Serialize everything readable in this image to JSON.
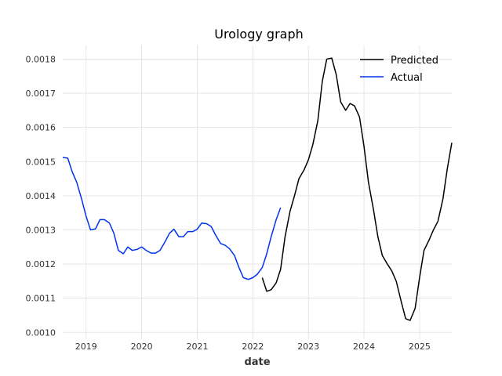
{
  "chart_data": {
    "type": "line",
    "title": "Urology graph",
    "xlabel": "date",
    "ylabel": "",
    "xlim": [
      2018.58,
      2025.58
    ],
    "ylim": [
      0.00098,
      0.00184
    ],
    "x_ticks": [
      2019,
      2020,
      2021,
      2022,
      2023,
      2024,
      2025
    ],
    "x_tick_labels": [
      "2019",
      "2020",
      "2021",
      "2022",
      "2023",
      "2024",
      "2025"
    ],
    "y_ticks": [
      0.001,
      0.0011,
      0.0012,
      0.0013,
      0.0014,
      0.0015,
      0.0016,
      0.0017,
      0.0018
    ],
    "y_tick_labels": [
      "0.0010",
      "0.0011",
      "0.0012",
      "0.0013",
      "0.0014",
      "0.0015",
      "0.0016",
      "0.0017",
      "0.0018"
    ],
    "grid": true,
    "legend_position": "top-right",
    "series": [
      {
        "name": "Predicted",
        "color": "#000000",
        "x": [
          2022.17,
          2022.25,
          2022.33,
          2022.42,
          2022.5,
          2022.58,
          2022.67,
          2022.75,
          2022.83,
          2022.92,
          2023.0,
          2023.08,
          2023.17,
          2023.25,
          2023.33,
          2023.42,
          2023.5,
          2023.58,
          2023.67,
          2023.75,
          2023.83,
          2023.92,
          2024.0,
          2024.08,
          2024.17,
          2024.25,
          2024.33,
          2024.42,
          2024.5,
          2024.58,
          2024.67,
          2024.75,
          2024.83,
          2024.92,
          2025.0,
          2025.08,
          2025.17,
          2025.25,
          2025.33,
          2025.42,
          2025.5,
          2025.58
        ],
        "values": [
          0.00116,
          0.00112,
          0.001125,
          0.001145,
          0.001185,
          0.00128,
          0.001355,
          0.0014,
          0.00145,
          0.001475,
          0.001505,
          0.00155,
          0.00162,
          0.001735,
          0.0018,
          0.001803,
          0.001755,
          0.001675,
          0.00165,
          0.00167,
          0.001663,
          0.00163,
          0.001545,
          0.00144,
          0.00136,
          0.00128,
          0.001225,
          0.0012,
          0.00118,
          0.00115,
          0.00109,
          0.00104,
          0.001035,
          0.00107,
          0.00116,
          0.00124,
          0.00127,
          0.0013,
          0.001325,
          0.00139,
          0.00148,
          0.001555
        ]
      },
      {
        "name": "Actual",
        "color": "#0033ee",
        "x": [
          2018.58,
          2018.67,
          2018.75,
          2018.83,
          2018.92,
          2019.0,
          2019.08,
          2019.17,
          2019.25,
          2019.33,
          2019.42,
          2019.5,
          2019.58,
          2019.67,
          2019.75,
          2019.83,
          2019.92,
          2020.0,
          2020.08,
          2020.17,
          2020.25,
          2020.33,
          2020.42,
          2020.5,
          2020.58,
          2020.67,
          2020.75,
          2020.83,
          2020.92,
          2021.0,
          2021.08,
          2021.17,
          2021.25,
          2021.33,
          2021.42,
          2021.5,
          2021.58,
          2021.67,
          2021.75,
          2021.83,
          2021.92,
          2022.0,
          2022.08,
          2022.17,
          2022.25,
          2022.33,
          2022.42,
          2022.5
        ],
        "values": [
          0.001512,
          0.00151,
          0.00147,
          0.00144,
          0.00139,
          0.00134,
          0.0013,
          0.001303,
          0.00133,
          0.00133,
          0.00132,
          0.00129,
          0.00124,
          0.00123,
          0.00125,
          0.00124,
          0.001243,
          0.00125,
          0.00124,
          0.001232,
          0.001232,
          0.00124,
          0.001265,
          0.00129,
          0.001302,
          0.00128,
          0.00128,
          0.001295,
          0.001295,
          0.001302,
          0.00132,
          0.001318,
          0.00131,
          0.001285,
          0.00126,
          0.001255,
          0.001245,
          0.001225,
          0.00119,
          0.00116,
          0.001155,
          0.00116,
          0.00117,
          0.00119,
          0.00123,
          0.00128,
          0.00133,
          0.001365
        ]
      }
    ]
  }
}
